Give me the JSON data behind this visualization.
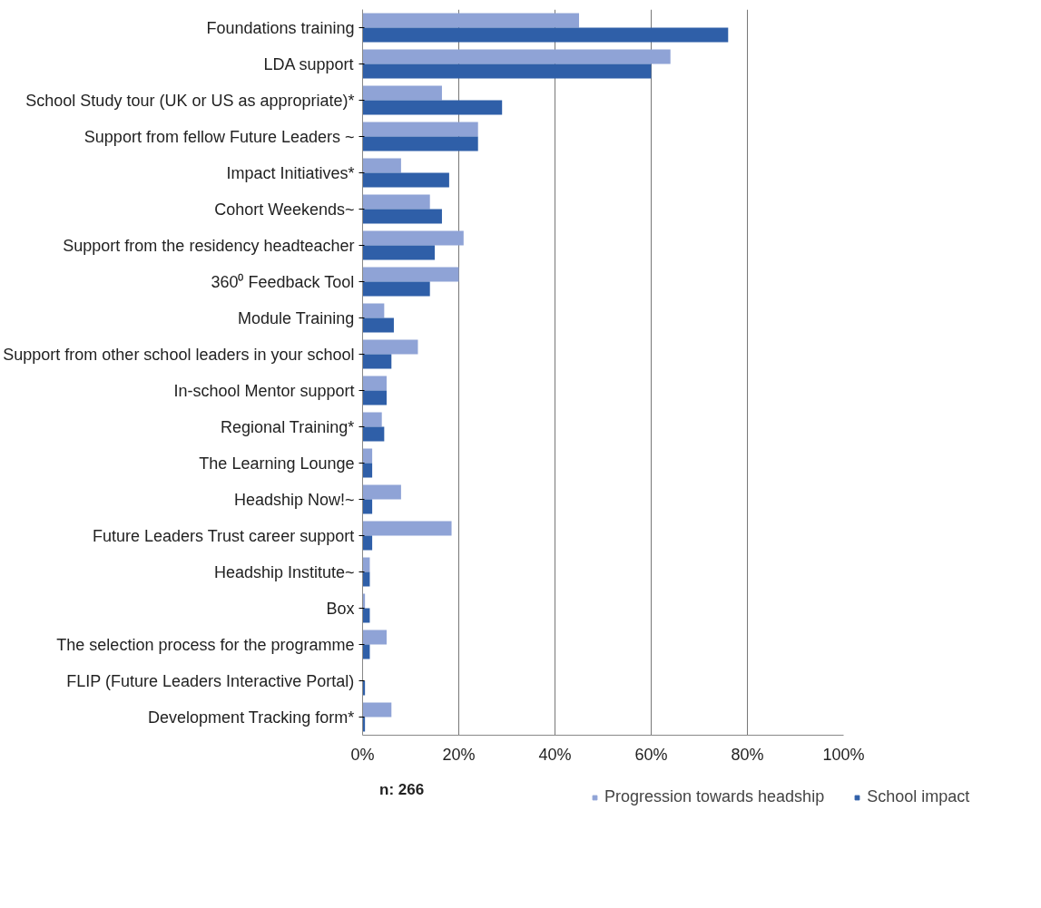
{
  "chart_data": {
    "type": "bar",
    "orientation": "horizontal",
    "categories": [
      "Foundations training",
      "LDA support",
      "School Study tour (UK or US as appropriate)*",
      "Support from fellow Future Leaders ~",
      "Impact Initiatives*",
      "Cohort Weekends~",
      "Support from the residency headteacher",
      "360⁰ Feedback Tool",
      "Module Training",
      "Support from other school leaders in your school",
      "In-school Mentor support",
      "Regional Training*",
      "The Learning Lounge",
      "Headship Now!~",
      "Future Leaders Trust career support",
      "Headship Institute~",
      "Box",
      "The selection process for the programme",
      "FLIP (Future Leaders Interactive Portal)",
      "Development Tracking form*"
    ],
    "series": [
      {
        "name": "Progression towards headship",
        "color": "#8fa3d6",
        "values": [
          45,
          64,
          16.5,
          24,
          8,
          14,
          21,
          20,
          4.5,
          11.5,
          5,
          4,
          2,
          8,
          18.5,
          1.5,
          0.5,
          5,
          0,
          6
        ]
      },
      {
        "name": "School impact",
        "color": "#2f5fa8",
        "values": [
          76,
          60,
          29,
          24,
          18,
          16.5,
          15,
          14,
          6.5,
          6,
          5,
          4.5,
          2,
          2,
          2,
          1.5,
          1.5,
          1.5,
          0.5,
          0.5
        ]
      }
    ],
    "xlim": [
      0,
      100
    ],
    "xticks": [
      {
        "value": 0,
        "label": "0%"
      },
      {
        "value": 20,
        "label": "20%"
      },
      {
        "value": 40,
        "label": "40%"
      },
      {
        "value": 60,
        "label": "60%"
      },
      {
        "value": 80,
        "label": "80%"
      },
      {
        "value": 100,
        "label": "100%"
      }
    ],
    "grid": "x",
    "legend": "bottom",
    "annotations": [
      "n: 266"
    ]
  }
}
